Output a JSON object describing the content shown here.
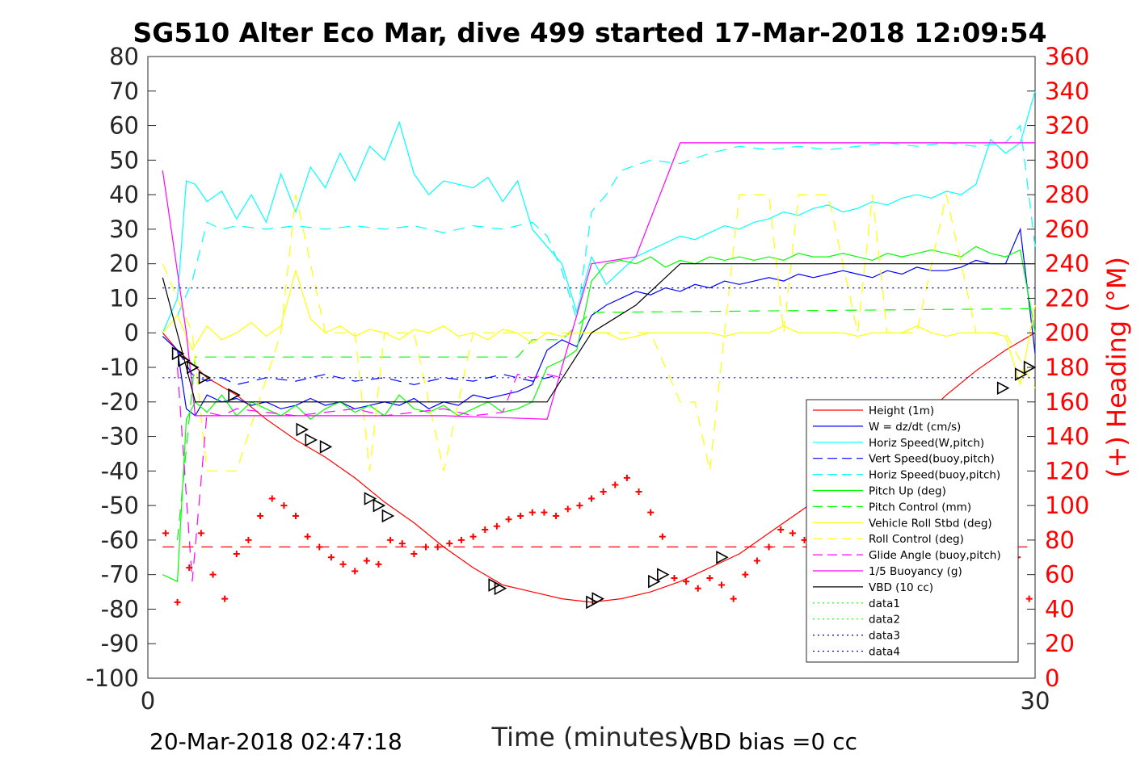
{
  "chart_data": {
    "type": "line",
    "title": "SG510 Alter Eco Mar, dive 499 started 17-Mar-2018 12:09:54",
    "xlabel": "Time (minutes)",
    "ylabel_right": "(+) Heading (°M)",
    "xlim": [
      0,
      30
    ],
    "ylim_left": [
      -100,
      80
    ],
    "ylim_right": [
      0,
      360
    ],
    "x_ticks": [
      "0",
      "30"
    ],
    "y_ticks_left": [
      "80",
      "70",
      "60",
      "50",
      "40",
      "30",
      "20",
      "10",
      "0",
      "-10",
      "-20",
      "-30",
      "-40",
      "-50",
      "-60",
      "-70",
      "-80",
      "-90",
      "-100"
    ],
    "y_ticks_right": [
      "360",
      "340",
      "320",
      "300",
      "280",
      "260",
      "240",
      "220",
      "200",
      "180",
      "160",
      "140",
      "120",
      "100",
      "80",
      "60",
      "40",
      "20",
      "0"
    ],
    "footer_left": "20-Mar-2018 02:47:18",
    "footer_right": "VBD bias =0 cc",
    "legend": [
      {
        "label": "Height (1m)",
        "color": "#ff0000",
        "style": "solid"
      },
      {
        "label": "W = dz/dt (cm/s)",
        "color": "#0000ff",
        "style": "solid"
      },
      {
        "label": "Horiz Speed(W,pitch)",
        "color": "#00ffff",
        "style": "solid"
      },
      {
        "label": "Vert Speed(buoy,pitch)",
        "color": "#0000ff",
        "style": "dashed"
      },
      {
        "label": "Horiz Speed(buoy,pitch)",
        "color": "#00ffff",
        "style": "dashed"
      },
      {
        "label": "Pitch Up (deg)",
        "color": "#00ff00",
        "style": "solid"
      },
      {
        "label": "Pitch Control (mm)",
        "color": "#00ff00",
        "style": "dashed"
      },
      {
        "label": "Vehicle Roll Stbd (deg)",
        "color": "#ffff00",
        "style": "solid"
      },
      {
        "label": "Roll Control (deg)",
        "color": "#ffff00",
        "style": "dashed"
      },
      {
        "label": "Glide Angle (buoy,pitch)",
        "color": "#ff00ff",
        "style": "dashed"
      },
      {
        "label": "1/5 Buoyancy (g)",
        "color": "#ff00ff",
        "style": "solid"
      },
      {
        "label": "VBD (10 cc)",
        "color": "#000000",
        "style": "solid"
      },
      {
        "label": "data1",
        "color": "#00ff00",
        "style": "dotted"
      },
      {
        "label": "data2",
        "color": "#00ff00",
        "style": "dotted"
      },
      {
        "label": "data3",
        "color": "#00008b",
        "style": "dotted"
      },
      {
        "label": "data4",
        "color": "#0000ff",
        "style": "dotted"
      }
    ],
    "series": [
      {
        "key": "height",
        "color": "#ff0000",
        "dash": "",
        "x": [
          0.5,
          1,
          1.5,
          2,
          3,
          4,
          5,
          6,
          7,
          8,
          9,
          10,
          11,
          12,
          13,
          14,
          15,
          16,
          17,
          18,
          19,
          20,
          21,
          22,
          23,
          24,
          25,
          26,
          27,
          28,
          29,
          30
        ],
        "values": [
          0,
          -5,
          -9,
          -13,
          -18,
          -25,
          -31,
          -36,
          -42,
          -49,
          -55,
          -62,
          -68,
          -73,
          -75,
          -77,
          -78,
          -77,
          -75,
          -72,
          -68,
          -64,
          -58,
          -52,
          -46,
          -40,
          -33,
          -26,
          -18,
          -11,
          -5,
          0
        ]
      },
      {
        "key": "w",
        "color": "#0000ff",
        "dash": "",
        "x": [
          0.5,
          1,
          1.3,
          1.6,
          2,
          2.5,
          3,
          3.5,
          4,
          4.5,
          5,
          5.5,
          6,
          6.5,
          7,
          7.5,
          8,
          8.5,
          9,
          9.5,
          10,
          10.5,
          11,
          11.5,
          12,
          12.5,
          13,
          13.5,
          14,
          14.5,
          15,
          15.5,
          16,
          16.5,
          17,
          17.5,
          18,
          18.5,
          19,
          19.5,
          20,
          20.5,
          21,
          21.5,
          22,
          22.5,
          23,
          23.5,
          24,
          24.5,
          25,
          25.5,
          26,
          26.5,
          27,
          27.5,
          28,
          28.5,
          29,
          29.5,
          30
        ],
        "values": [
          -1,
          -5,
          -22,
          -24,
          -18,
          -20,
          -19,
          -21,
          -20,
          -22,
          -21,
          -19,
          -21,
          -20,
          -22,
          -21,
          -20,
          -21,
          -19,
          -22,
          -20,
          -21,
          -18,
          -19,
          -18,
          -17,
          -15,
          -5,
          -2,
          -4,
          5,
          8,
          10,
          12,
          11,
          13,
          12,
          14,
          13,
          15,
          14,
          15,
          16,
          15,
          17,
          16,
          17,
          18,
          17,
          16,
          18,
          17,
          19,
          18,
          18,
          19,
          21,
          20,
          20,
          30,
          -6
        ]
      },
      {
        "key": "horiz_w",
        "color": "#00ffff",
        "dash": "",
        "x": [
          0.5,
          1,
          1.3,
          1.6,
          2,
          2.5,
          3,
          3.5,
          4,
          4.5,
          5,
          5.5,
          6,
          6.5,
          7,
          7.5,
          8,
          8.5,
          9,
          9.5,
          10,
          10.5,
          11,
          11.5,
          12,
          12.5,
          13,
          13.5,
          14,
          14.5,
          15,
          15.5,
          16,
          16.5,
          17,
          17.5,
          18,
          18.5,
          19,
          19.5,
          20,
          20.5,
          21,
          21.5,
          22,
          22.5,
          23,
          23.5,
          24,
          24.5,
          25,
          25.5,
          26,
          26.5,
          27,
          27.5,
          28,
          28.5,
          29,
          29.5,
          30
        ],
        "values": [
          0,
          10,
          44,
          43,
          38,
          41,
          33,
          40,
          32,
          46,
          35,
          48,
          42,
          52,
          44,
          54,
          50,
          61,
          46,
          40,
          44,
          43,
          42,
          45,
          38,
          44,
          30,
          25,
          20,
          6,
          22,
          14,
          18,
          22,
          24,
          26,
          28,
          27,
          29,
          31,
          30,
          32,
          33,
          35,
          34,
          36,
          37,
          35,
          36,
          38,
          37,
          39,
          40,
          39,
          41,
          40,
          43,
          56,
          52,
          55,
          70
        ]
      },
      {
        "key": "vert_buoy",
        "color": "#0000ff",
        "dash": "14,10",
        "x": [
          1,
          1.5,
          2,
          2.5,
          3,
          4,
          5,
          6,
          7,
          8,
          9,
          10,
          11,
          12,
          13,
          13.5,
          14
        ],
        "values": [
          -5,
          -12,
          -14,
          -13,
          -15,
          -13,
          -14,
          -12,
          -14,
          -13,
          -15,
          -13,
          -14,
          -12,
          -14,
          -13,
          -12
        ]
      },
      {
        "key": "horiz_buoy",
        "color": "#00ffff",
        "dash": "14,10",
        "x": [
          1,
          1.5,
          2,
          2.5,
          3,
          4,
          5,
          6,
          7,
          8,
          9,
          10,
          11,
          12,
          13,
          13.5,
          14,
          14.5,
          15,
          15.5,
          16,
          17,
          18,
          19,
          20,
          21,
          22,
          23,
          24,
          25,
          26,
          27,
          28,
          29,
          29.5,
          30
        ],
        "values": [
          5,
          15,
          32,
          30,
          31,
          30,
          31,
          30,
          31,
          30,
          31,
          29,
          31,
          30,
          32,
          28,
          18,
          4,
          35,
          40,
          47,
          50,
          49,
          52,
          54,
          53,
          54,
          53,
          54,
          55,
          54,
          55,
          54,
          55,
          60,
          25
        ]
      },
      {
        "key": "pitch_up",
        "color": "#00ff00",
        "dash": "",
        "x": [
          0.5,
          1,
          1.3,
          1.6,
          2,
          2.5,
          3,
          3.5,
          4,
          4.5,
          5,
          5.5,
          6,
          6.5,
          7,
          7.5,
          8,
          8.5,
          9,
          9.5,
          10,
          10.5,
          11,
          11.5,
          12,
          12.5,
          13,
          13.5,
          14,
          14.5,
          15,
          15.5,
          16,
          16.5,
          17,
          17.5,
          18,
          18.5,
          19,
          19.5,
          20,
          20.5,
          21,
          21.5,
          22,
          22.5,
          23,
          23.5,
          24,
          24.5,
          25,
          25.5,
          26,
          26.5,
          27,
          27.5,
          28,
          28.5,
          29,
          29.5,
          30
        ],
        "values": [
          -70,
          -72,
          -25,
          -20,
          -23,
          -18,
          -24,
          -20,
          -22,
          -24,
          -21,
          -25,
          -22,
          -20,
          -23,
          -21,
          -24,
          -18,
          -22,
          -23,
          -21,
          -24,
          -22,
          -20,
          -23,
          -22,
          -20,
          -10,
          -8,
          -5,
          15,
          20,
          21,
          20,
          22,
          19,
          21,
          20,
          22,
          21,
          22,
          21,
          22,
          21,
          23,
          22,
          22,
          23,
          22,
          21,
          23,
          22,
          23,
          24,
          23,
          22,
          25,
          23,
          22,
          24,
          0
        ]
      },
      {
        "key": "pitch_ctrl",
        "color": "#00ff00",
        "dash": "14,10",
        "x": [
          1,
          1.6,
          2,
          5,
          8,
          11,
          12.5,
          13,
          14,
          15,
          16,
          30
        ],
        "values": [
          -60,
          -7,
          -7,
          -7,
          -7,
          -7,
          -7,
          -2,
          -2,
          6,
          6,
          7
        ]
      },
      {
        "key": "roll",
        "color": "#ffff00",
        "dash": "",
        "x": [
          0.5,
          1,
          1.5,
          2,
          2.5,
          3,
          3.5,
          4,
          4.5,
          5,
          5.5,
          6,
          6.5,
          7,
          7.5,
          8,
          8.5,
          9,
          9.5,
          10,
          10.5,
          11,
          11.5,
          12,
          12.5,
          13,
          13.5,
          14,
          14.5,
          15,
          15.5,
          16,
          16.5,
          17,
          17.5,
          18,
          18.5,
          19,
          19.5,
          20,
          20.5,
          21,
          21.5,
          22,
          22.5,
          23,
          23.5,
          24,
          24.5,
          25,
          25.5,
          26,
          26.5,
          27,
          27.5,
          28,
          28.5,
          29,
          29.5,
          30
        ],
        "values": [
          0,
          5,
          -5,
          2,
          -2,
          0,
          3,
          -1,
          2,
          18,
          4,
          0,
          2,
          -1,
          1,
          0,
          -2,
          1,
          0,
          2,
          -1,
          0,
          -2,
          1,
          0,
          -3,
          0,
          -1,
          0,
          0,
          0,
          -2,
          -1,
          0,
          0,
          0,
          0,
          0,
          -1,
          0,
          0,
          0,
          2,
          0,
          0,
          0,
          0,
          -1,
          0,
          0,
          0,
          2,
          0,
          -1,
          0,
          0,
          0,
          -1,
          -15,
          8
        ]
      },
      {
        "key": "roll_ctrl",
        "color": "#ffff00",
        "dash": "14,10",
        "x": [
          0.5,
          1.5,
          2,
          3,
          4.5,
          5,
          6,
          7,
          7.5,
          8,
          9,
          10,
          11,
          12,
          13,
          14,
          15,
          16,
          17,
          18,
          18.5,
          19,
          19.5,
          20,
          21,
          21.5,
          22,
          23,
          24,
          24.5,
          25,
          26,
          27,
          28,
          29,
          30
        ],
        "values": [
          20,
          0,
          -40,
          -40,
          0,
          40,
          0,
          0,
          -40,
          0,
          0,
          -40,
          0,
          0,
          0,
          0,
          0,
          0,
          0,
          -20,
          -20,
          -40,
          0,
          40,
          40,
          0,
          40,
          40,
          0,
          40,
          0,
          0,
          40,
          0,
          0,
          -16
        ]
      },
      {
        "key": "glide",
        "color": "#ff00ff",
        "dash": "14,10",
        "x": [
          1,
          1.5,
          2,
          2.5,
          3,
          4,
          5,
          6,
          7,
          8,
          9,
          10,
          11,
          12,
          12.5,
          13,
          13.5,
          14
        ],
        "values": [
          -10,
          -72,
          -23,
          -24,
          -22,
          -23,
          -24,
          -23,
          -22,
          -24,
          -23,
          -22,
          -24,
          -23,
          -12,
          -13,
          -12,
          -13
        ]
      },
      {
        "key": "buoyancy",
        "color": "#ff00ff",
        "dash": "",
        "x": [
          0.5,
          1.3,
          1.6,
          5,
          10,
          13.5,
          15,
          16.5,
          18,
          30
        ],
        "values": [
          47,
          0,
          -24,
          -24,
          -24,
          -25,
          20,
          22,
          55,
          55
        ]
      },
      {
        "key": "vbd",
        "color": "#000000",
        "dash": "",
        "x": [
          0.5,
          1.3,
          1.6,
          5,
          10,
          13.5,
          15,
          16.5,
          18,
          30
        ],
        "values": [
          16,
          -10,
          -20,
          -20,
          -20,
          -20,
          0,
          8,
          20,
          20
        ]
      },
      {
        "key": "data3",
        "color": "#00008b",
        "dash": "2,5",
        "x": [
          0.5,
          30
        ],
        "values": [
          13,
          13
        ]
      },
      {
        "key": "data4",
        "color": "#0000ff",
        "dash": "2,5",
        "x": [
          0.5,
          30
        ],
        "values": [
          -13,
          -13
        ]
      },
      {
        "key": "heading_ref",
        "color": "#ff0000",
        "dash": "14,10",
        "x": [
          0.5,
          30
        ],
        "values": [
          -62,
          -62
        ]
      }
    ],
    "heading_points": {
      "color": "#ff0000",
      "x": [
        0.6,
        1.0,
        1.4,
        1.8,
        2.2,
        2.6,
        3.0,
        3.4,
        3.8,
        4.2,
        4.6,
        5.0,
        5.4,
        5.8,
        6.2,
        6.6,
        7.0,
        7.4,
        7.8,
        8.2,
        8.6,
        9.0,
        9.4,
        9.8,
        10.2,
        10.6,
        11.0,
        11.4,
        11.8,
        12.2,
        12.6,
        13.0,
        13.4,
        13.8,
        14.2,
        14.6,
        15.0,
        15.4,
        15.8,
        16.2,
        16.6,
        17.0,
        17.4,
        17.8,
        18.2,
        18.6,
        19.0,
        19.4,
        19.8,
        20.2,
        20.6,
        21.0,
        21.4,
        21.8,
        22.2,
        22.6,
        23.0,
        23.4,
        23.8,
        24.2,
        24.6,
        25.0,
        25.4,
        25.8,
        26.2,
        26.6,
        27.0,
        27.4,
        27.8,
        28.2,
        28.6,
        29.0,
        29.4,
        29.8
      ],
      "values": [
        -58,
        -78,
        -68,
        -58,
        -70,
        -77,
        -64,
        -60,
        -53,
        -48,
        -50,
        -53,
        -59,
        -62,
        -65,
        -67,
        -69,
        -66,
        -67,
        -60,
        -61,
        -64,
        -62,
        -62,
        -61,
        -60,
        -59,
        -57,
        -56,
        -54,
        -53,
        -52,
        -52,
        -53,
        -51,
        -50,
        -48,
        -46,
        -44,
        -42,
        -46,
        -52,
        -59,
        -71,
        -72,
        -74,
        -71,
        -73,
        -77,
        -70,
        -66,
        -62,
        -57,
        -58,
        -60,
        -63,
        -65,
        -68,
        -70,
        -66,
        -63,
        -57,
        -57,
        -58,
        -60,
        -62,
        -65,
        -71,
        -73,
        -62,
        -58,
        -62,
        -65,
        -77
      ]
    },
    "markers": {
      "color": "#000000",
      "x": [
        1.0,
        1.2,
        1.5,
        1.9,
        2.9,
        5.2,
        5.5,
        6.0,
        7.5,
        7.8,
        8.1,
        11.7,
        11.9,
        15.0,
        15.2,
        17.1,
        17.4,
        19.4,
        22.6,
        25.1,
        26.9,
        28.3,
        28.9,
        29.5,
        29.8
      ],
      "values": [
        -6,
        -8,
        -10,
        -13,
        -18,
        -28,
        -31,
        -33,
        -48,
        -50,
        -53,
        -73,
        -74,
        -78,
        -77,
        -72,
        -70,
        -65,
        -57,
        -47,
        -36,
        -29,
        -16,
        -12,
        -10
      ]
    }
  }
}
